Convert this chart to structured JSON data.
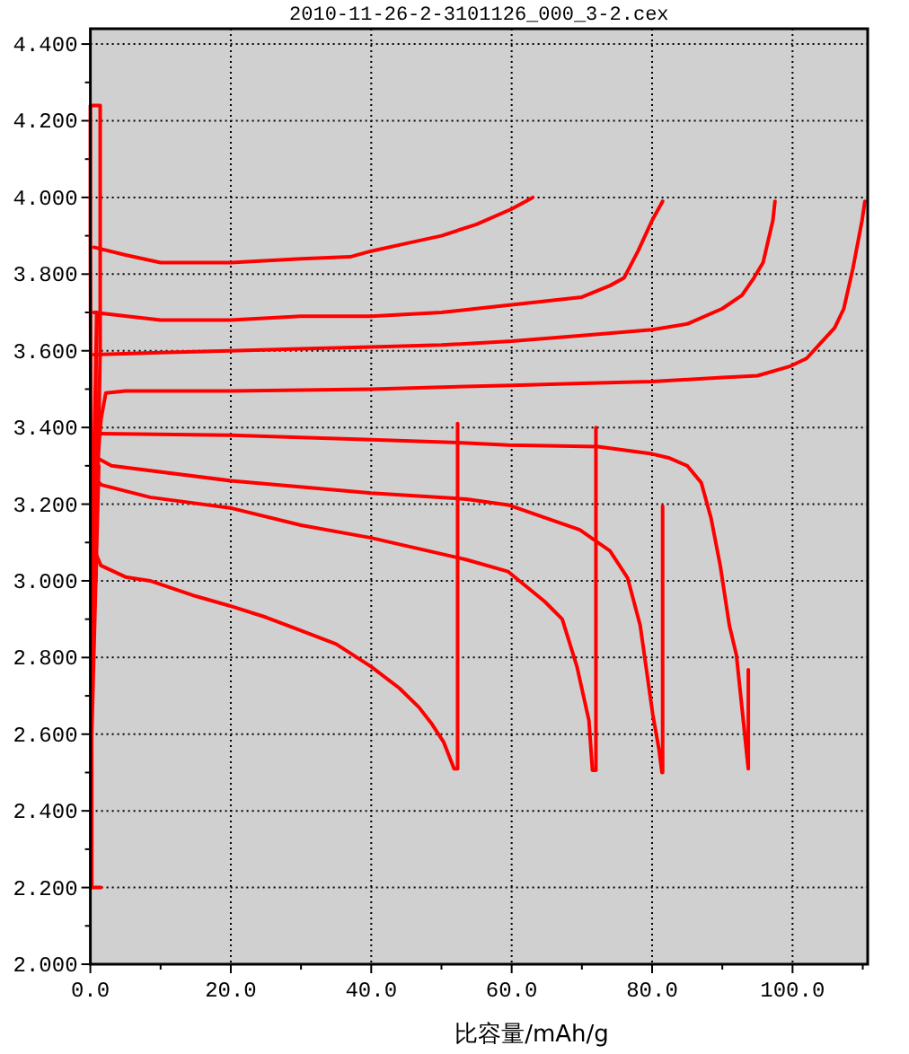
{
  "chart_data": {
    "type": "line",
    "title": "2010-11-26-2-3101126_000_3-2.cex",
    "xlabel": "比容量/mAh/g",
    "xlim": [
      0,
      110.7
    ],
    "ylim": [
      2.0,
      4.44
    ],
    "xticks": [
      {
        "value": 0,
        "label": "0.0"
      },
      {
        "value": 10,
        "label": null
      },
      {
        "value": 20,
        "label": "20.0"
      },
      {
        "value": 30,
        "label": null
      },
      {
        "value": 40,
        "label": "40.0"
      },
      {
        "value": 50,
        "label": null
      },
      {
        "value": 60,
        "label": "60.0"
      },
      {
        "value": 70,
        "label": null
      },
      {
        "value": 80,
        "label": "80.0"
      },
      {
        "value": 90,
        "label": null
      },
      {
        "value": 100,
        "label": "100.0"
      },
      {
        "value": 110,
        "label": null
      }
    ],
    "yticks": [
      {
        "value": 2.0,
        "label": "2.000"
      },
      {
        "value": 2.1,
        "label": null
      },
      {
        "value": 2.2,
        "label": "2.200"
      },
      {
        "value": 2.3,
        "label": null
      },
      {
        "value": 2.4,
        "label": "2.400"
      },
      {
        "value": 2.5,
        "label": null
      },
      {
        "value": 2.6,
        "label": "2.600"
      },
      {
        "value": 2.7,
        "label": null
      },
      {
        "value": 2.8,
        "label": "2.800"
      },
      {
        "value": 2.9,
        "label": null
      },
      {
        "value": 3.0,
        "label": "3.000"
      },
      {
        "value": 3.1,
        "label": null
      },
      {
        "value": 3.2,
        "label": "3.200"
      },
      {
        "value": 3.3,
        "label": null
      },
      {
        "value": 3.4,
        "label": "3.400"
      },
      {
        "value": 3.5,
        "label": null
      },
      {
        "value": 3.6,
        "label": "3.600"
      },
      {
        "value": 3.7,
        "label": null
      },
      {
        "value": 3.8,
        "label": "3.800"
      },
      {
        "value": 3.9,
        "label": null
      },
      {
        "value": 4.0,
        "label": "4.000"
      },
      {
        "value": 4.1,
        "label": null
      },
      {
        "value": 4.2,
        "label": "4.200"
      },
      {
        "value": 4.3,
        "label": null
      },
      {
        "value": 4.4,
        "label": "4.400"
      }
    ],
    "grid": true,
    "line_style": "solid",
    "series": [
      {
        "color": "#ff0000",
        "x": [
          1.5,
          0.2,
          0.2,
          0.0,
          0.0,
          1.4,
          1.4,
          0.8,
          0.4,
          0.9,
          0.3,
          1.0,
          0.2,
          1.2,
          0.5
        ],
        "values": [
          2.2,
          2.2,
          2.5,
          3.9,
          4.24,
          4.24,
          3.6,
          3.0,
          2.9,
          3.7,
          3.1,
          3.45,
          2.6,
          3.3,
          3.05
        ]
      },
      {
        "color": "#ff0000",
        "x": [
          0.5,
          5,
          10,
          20,
          30,
          37,
          40,
          45,
          50,
          55,
          60,
          63
        ],
        "values": [
          3.87,
          3.85,
          3.83,
          3.83,
          3.84,
          3.845,
          3.86,
          3.88,
          3.9,
          3.93,
          3.97,
          4.0
        ]
      },
      {
        "color": "#ff0000",
        "x": [
          0.5,
          10,
          20,
          30,
          40,
          50,
          55,
          60,
          65,
          70,
          74,
          76,
          78,
          80,
          81.5
        ],
        "values": [
          3.7,
          3.68,
          3.68,
          3.69,
          3.69,
          3.7,
          3.71,
          3.72,
          3.73,
          3.74,
          3.77,
          3.79,
          3.86,
          3.94,
          3.99
        ]
      },
      {
        "color": "#ff0000",
        "x": [
          0.5,
          10,
          20,
          30,
          40,
          50,
          60,
          70,
          80,
          85,
          90,
          92.8,
          94.5,
          95.8,
          97.2,
          97.5
        ],
        "values": [
          3.59,
          3.595,
          3.6,
          3.605,
          3.61,
          3.615,
          3.625,
          3.64,
          3.655,
          3.67,
          3.71,
          3.745,
          3.79,
          3.83,
          3.94,
          3.99
        ]
      },
      {
        "color": "#ff0000",
        "x": [
          1,
          1.5,
          2.2,
          5,
          20,
          40,
          60,
          70,
          80,
          90,
          95,
          99.7,
          102,
          104,
          106,
          107.3,
          108.6,
          109.9,
          110.3
        ],
        "values": [
          3.3,
          3.42,
          3.49,
          3.495,
          3.495,
          3.5,
          3.51,
          3.515,
          3.52,
          3.53,
          3.535,
          3.56,
          3.58,
          3.62,
          3.66,
          3.71,
          3.815,
          3.94,
          3.99
        ]
      },
      {
        "color": "#ff0000",
        "x": [
          0.8,
          1.5,
          5,
          8.5,
          15,
          20,
          25,
          30,
          35,
          40,
          44,
          46.8,
          48.5,
          50.3,
          51.8,
          52.3,
          52.3
        ],
        "values": [
          3.07,
          3.04,
          3.01,
          3.0,
          2.96,
          2.934,
          2.905,
          2.87,
          2.835,
          2.776,
          2.72,
          2.67,
          2.63,
          2.58,
          2.51,
          2.51,
          3.41
        ]
      },
      {
        "color": "#ff0000",
        "x": [
          1.0,
          1.6,
          8.5,
          20,
          30,
          40,
          53.6,
          59.5,
          64.7,
          67.2,
          69.3,
          71.0,
          71.5,
          72.0,
          72.0
        ],
        "values": [
          3.26,
          3.25,
          3.218,
          3.19,
          3.145,
          3.112,
          3.055,
          3.024,
          2.946,
          2.9,
          2.776,
          2.636,
          2.506,
          2.506,
          3.4
        ]
      },
      {
        "color": "#ff0000",
        "x": [
          1.0,
          3,
          20,
          40,
          53.6,
          59.5,
          69.7,
          74,
          76.5,
          78.3,
          80.1,
          81,
          81.4,
          81.5,
          81.5
        ],
        "values": [
          3.32,
          3.3,
          3.261,
          3.229,
          3.213,
          3.198,
          3.133,
          3.078,
          3.008,
          2.884,
          2.651,
          2.558,
          2.5,
          2.5,
          3.195
        ]
      },
      {
        "color": "#ff0000",
        "x": [
          1.5,
          20,
          40,
          53,
          59.5,
          72.3,
          80,
          82.5,
          85,
          87,
          88.4,
          89.7,
          91,
          92,
          92.9,
          93.7,
          93.7
        ],
        "values": [
          3.384,
          3.38,
          3.368,
          3.36,
          3.354,
          3.35,
          3.331,
          3.32,
          3.3,
          3.256,
          3.163,
          3.04,
          2.884,
          2.807,
          2.651,
          2.51,
          2.768
        ]
      }
    ]
  }
}
